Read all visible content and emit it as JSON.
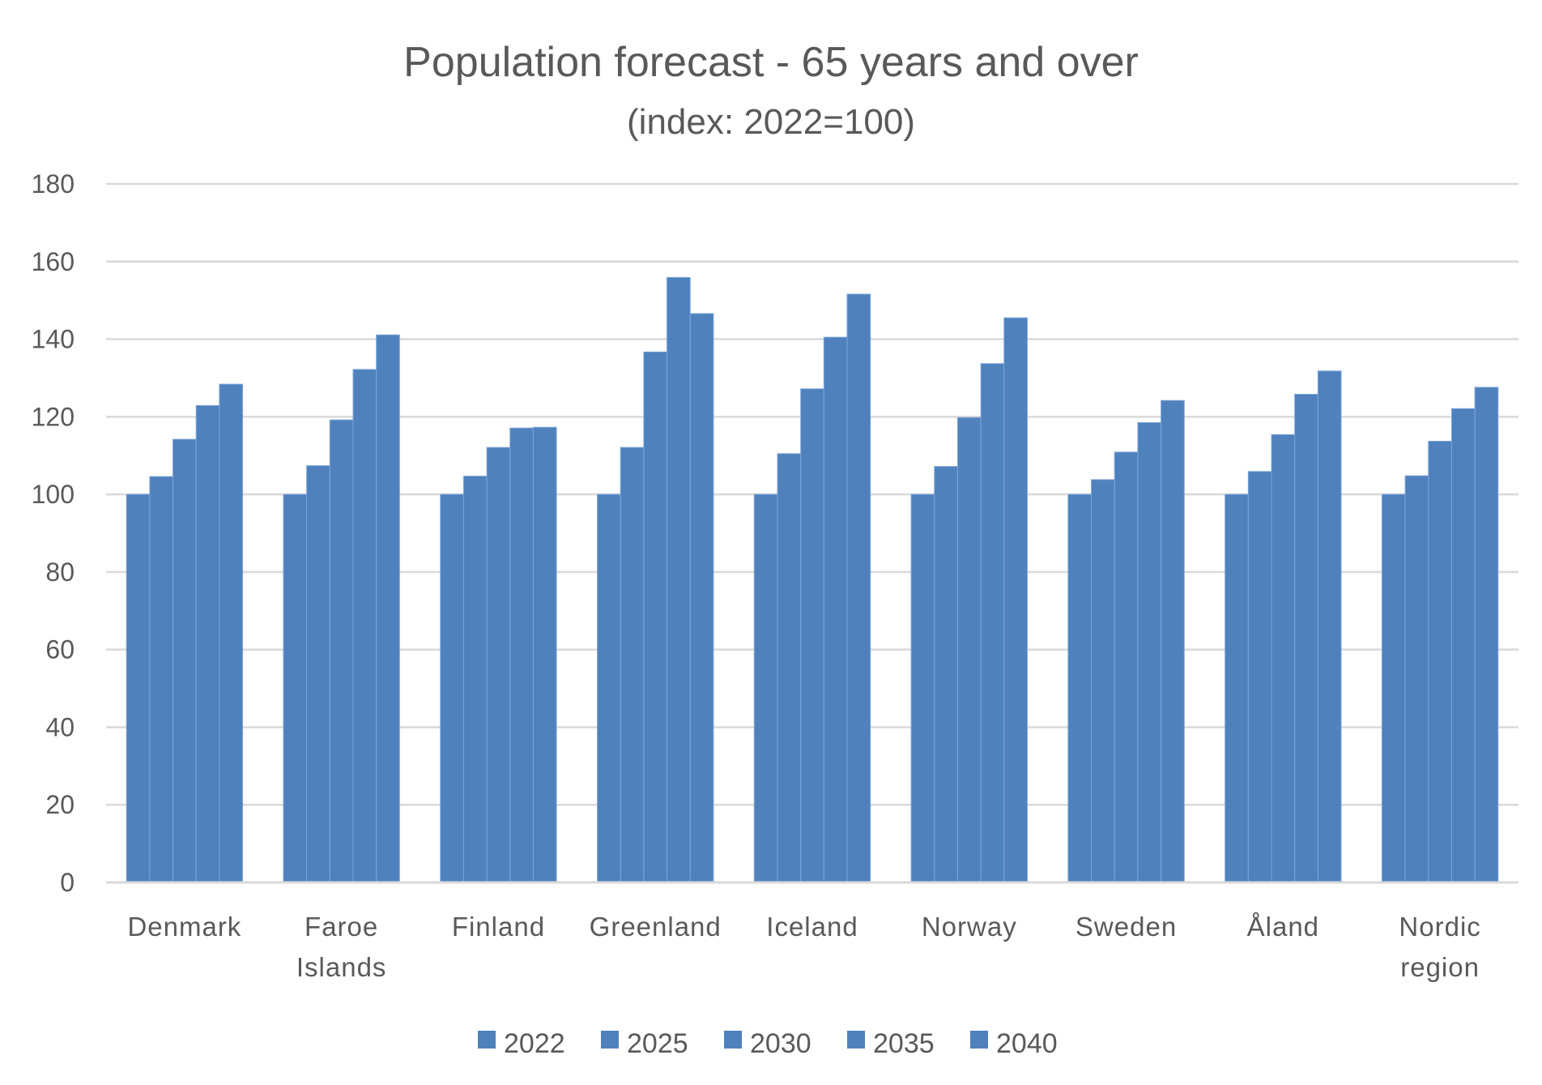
{
  "chart_data": {
    "type": "bar",
    "title": "Population forecast - 65 years and over",
    "subtitle": "(index: 2022=100)",
    "xlabel": "",
    "ylabel": "",
    "ylim": [
      0,
      180
    ],
    "yticks": [
      0,
      20,
      40,
      60,
      80,
      100,
      120,
      140,
      160,
      180
    ],
    "grid": true,
    "legend_position": "bottom",
    "bar_color": "#4f81bd",
    "categories": [
      [
        "Denmark"
      ],
      [
        "Faroe",
        "Islands"
      ],
      [
        "Finland"
      ],
      [
        "Greenland"
      ],
      [
        "Iceland"
      ],
      [
        "Norway"
      ],
      [
        "Sweden"
      ],
      [
        "Åland"
      ],
      [
        "Nordic",
        "region"
      ]
    ],
    "series": [
      {
        "name": "2022",
        "color": "#4f81bd",
        "values": [
          100,
          100,
          100,
          100,
          100,
          100,
          100,
          100,
          100
        ]
      },
      {
        "name": "2025",
        "color": "#4f81bd",
        "values": [
          104.6,
          107.4,
          104.7,
          112.1,
          110.5,
          107.2,
          103.8,
          105.9,
          104.8
        ]
      },
      {
        "name": "2030",
        "color": "#4f81bd",
        "values": [
          114.2,
          119.2,
          112.1,
          136.7,
          127.2,
          119.8,
          110.9,
          115.4,
          113.7
        ]
      },
      {
        "name": "2035",
        "color": "#4f81bd",
        "values": [
          122.9,
          132.2,
          117.1,
          155.9,
          140.5,
          133.7,
          118.5,
          125.8,
          122.1
        ]
      },
      {
        "name": "2040",
        "color": "#4f81bd",
        "values": [
          128.4,
          141.1,
          117.3,
          146.6,
          151.6,
          145.5,
          124.2,
          131.8,
          127.6
        ]
      }
    ]
  }
}
